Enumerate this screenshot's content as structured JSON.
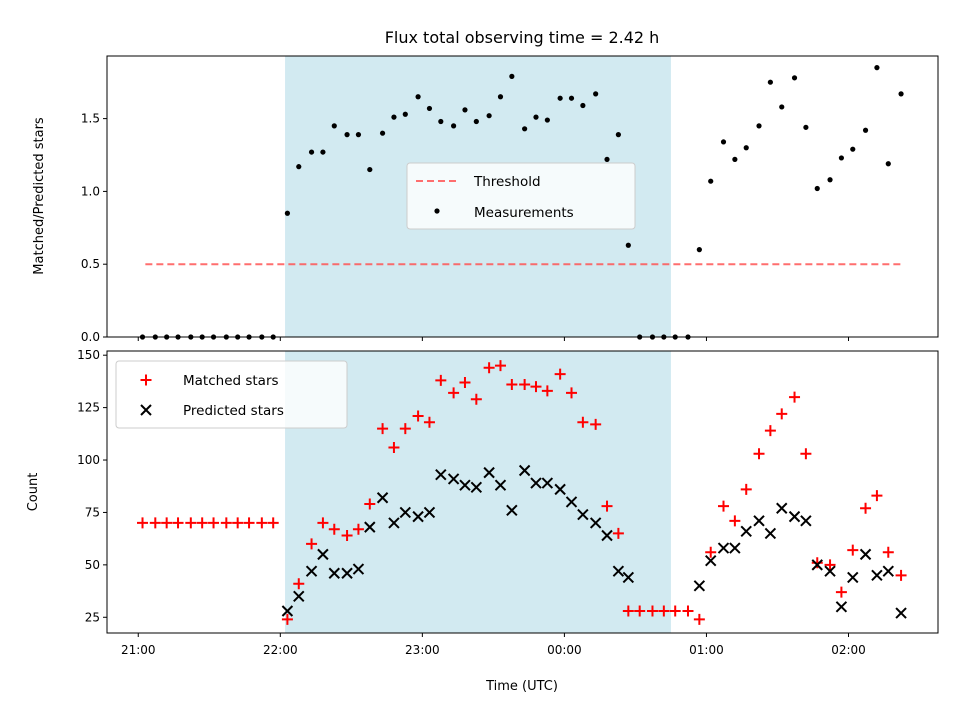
{
  "title": "Flux total observing time = 2.42 h",
  "colors": {
    "shade": "#add8e6",
    "threshold": "#ff5555",
    "matched": "#ff0000",
    "predicted": "#000000",
    "measurement": "#000000"
  },
  "chart_data": [
    {
      "type": "scatter",
      "name": "ratio-panel",
      "ylabel": "Matched/Predicted stars",
      "ylim": [
        0,
        1.93
      ],
      "yticks": [
        "0.0",
        "0.5",
        "1.0",
        "1.5"
      ],
      "ytick_values": [
        0,
        0.5,
        1.0,
        1.5
      ],
      "xlim": [
        20.78,
        26.63
      ],
      "shaded_interval": [
        "22:02",
        "00:45"
      ],
      "threshold": 0.5,
      "threshold_x": [
        21.05,
        26.38
      ],
      "legend": {
        "placement": "center",
        "labels": [
          "Threshold",
          "Measurements"
        ]
      },
      "series": [
        {
          "name": "Measurements",
          "points": [
            [
              21.03,
              0
            ],
            [
              21.12,
              0
            ],
            [
              21.2,
              0
            ],
            [
              21.28,
              0
            ],
            [
              21.37,
              0
            ],
            [
              21.45,
              0
            ],
            [
              21.53,
              0
            ],
            [
              21.62,
              0
            ],
            [
              21.7,
              0
            ],
            [
              21.78,
              0
            ],
            [
              21.87,
              0
            ],
            [
              21.95,
              0
            ],
            [
              22.05,
              0.85
            ],
            [
              22.13,
              1.17
            ],
            [
              22.22,
              1.27
            ],
            [
              22.3,
              1.27
            ],
            [
              22.38,
              1.45
            ],
            [
              22.47,
              1.39
            ],
            [
              22.55,
              1.39
            ],
            [
              22.63,
              1.15
            ],
            [
              22.72,
              1.4
            ],
            [
              22.8,
              1.51
            ],
            [
              22.88,
              1.53
            ],
            [
              22.97,
              1.65
            ],
            [
              23.05,
              1.57
            ],
            [
              23.13,
              1.48
            ],
            [
              23.22,
              1.45
            ],
            [
              23.3,
              1.56
            ],
            [
              23.38,
              1.48
            ],
            [
              23.47,
              1.52
            ],
            [
              23.55,
              1.65
            ],
            [
              23.63,
              1.79
            ],
            [
              23.72,
              1.43
            ],
            [
              23.8,
              1.51
            ],
            [
              23.88,
              1.49
            ],
            [
              23.97,
              1.64
            ],
            [
              24.05,
              1.64
            ],
            [
              24.13,
              1.59
            ],
            [
              24.22,
              1.67
            ],
            [
              24.3,
              1.22
            ],
            [
              24.38,
              1.39
            ],
            [
              24.45,
              0.63
            ],
            [
              24.53,
              0
            ],
            [
              24.62,
              0
            ],
            [
              24.7,
              0
            ],
            [
              24.78,
              0
            ],
            [
              24.87,
              0
            ],
            [
              24.95,
              0.6
            ],
            [
              25.03,
              1.07
            ],
            [
              25.12,
              1.34
            ],
            [
              25.2,
              1.22
            ],
            [
              25.28,
              1.3
            ],
            [
              25.37,
              1.45
            ],
            [
              25.45,
              1.75
            ],
            [
              25.53,
              1.58
            ],
            [
              25.62,
              1.78
            ],
            [
              25.7,
              1.44
            ],
            [
              25.78,
              1.02
            ],
            [
              25.87,
              1.08
            ],
            [
              25.95,
              1.23
            ],
            [
              26.03,
              1.29
            ],
            [
              26.12,
              1.42
            ],
            [
              26.2,
              1.85
            ],
            [
              26.28,
              1.19
            ],
            [
              26.37,
              1.67
            ]
          ]
        }
      ]
    },
    {
      "type": "scatter",
      "name": "count-panel",
      "xlabel": "Time (UTC)",
      "ylabel": "Count",
      "ylim": [
        17.5,
        152
      ],
      "yticks": [
        "25",
        "50",
        "75",
        "100",
        "125",
        "150"
      ],
      "ytick_values": [
        25,
        50,
        75,
        100,
        125,
        150
      ],
      "xlim": [
        20.78,
        26.63
      ],
      "xticks": [
        "21:00",
        "22:00",
        "23:00",
        "00:00",
        "01:00",
        "02:00"
      ],
      "xtick_values": [
        21,
        22,
        23,
        24,
        25,
        26
      ],
      "shaded_interval": [
        "22:02",
        "00:45"
      ],
      "legend": {
        "placement": "upper left",
        "labels": [
          "Matched stars",
          "Predicted stars"
        ]
      },
      "series": [
        {
          "name": "Matched stars",
          "points": [
            [
              21.03,
              70
            ],
            [
              21.12,
              70
            ],
            [
              21.2,
              70
            ],
            [
              21.28,
              70
            ],
            [
              21.37,
              70
            ],
            [
              21.45,
              70
            ],
            [
              21.53,
              70
            ],
            [
              21.62,
              70
            ],
            [
              21.7,
              70
            ],
            [
              21.78,
              70
            ],
            [
              21.87,
              70
            ],
            [
              21.95,
              70
            ],
            [
              22.05,
              24
            ],
            [
              22.13,
              41
            ],
            [
              22.22,
              60
            ],
            [
              22.3,
              70
            ],
            [
              22.38,
              67
            ],
            [
              22.47,
              64
            ],
            [
              22.55,
              67
            ],
            [
              22.63,
              79
            ],
            [
              22.72,
              115
            ],
            [
              22.8,
              106
            ],
            [
              22.88,
              115
            ],
            [
              22.97,
              121
            ],
            [
              23.05,
              118
            ],
            [
              23.13,
              138
            ],
            [
              23.22,
              132
            ],
            [
              23.3,
              137
            ],
            [
              23.38,
              129
            ],
            [
              23.47,
              144
            ],
            [
              23.55,
              145
            ],
            [
              23.63,
              136
            ],
            [
              23.72,
              136
            ],
            [
              23.8,
              135
            ],
            [
              23.88,
              133
            ],
            [
              23.97,
              141
            ],
            [
              24.05,
              132
            ],
            [
              24.13,
              118
            ],
            [
              24.22,
              117
            ],
            [
              24.3,
              78
            ],
            [
              24.38,
              65
            ],
            [
              24.45,
              28
            ],
            [
              24.53,
              28
            ],
            [
              24.62,
              28
            ],
            [
              24.7,
              28
            ],
            [
              24.78,
              28
            ],
            [
              24.87,
              28
            ],
            [
              24.95,
              24
            ],
            [
              25.03,
              56
            ],
            [
              25.12,
              78
            ],
            [
              25.2,
              71
            ],
            [
              25.28,
              86
            ],
            [
              25.37,
              103
            ],
            [
              25.45,
              114
            ],
            [
              25.53,
              122
            ],
            [
              25.62,
              130
            ],
            [
              25.7,
              103
            ],
            [
              25.78,
              51
            ],
            [
              25.87,
              50
            ],
            [
              25.95,
              37
            ],
            [
              26.03,
              57
            ],
            [
              26.12,
              77
            ],
            [
              26.2,
              83
            ],
            [
              26.28,
              56
            ],
            [
              26.37,
              45
            ]
          ]
        },
        {
          "name": "Predicted stars",
          "points": [
            [
              22.05,
              28
            ],
            [
              22.13,
              35
            ],
            [
              22.22,
              47
            ],
            [
              22.3,
              55
            ],
            [
              22.38,
              46
            ],
            [
              22.47,
              46
            ],
            [
              22.55,
              48
            ],
            [
              22.63,
              68
            ],
            [
              22.72,
              82
            ],
            [
              22.8,
              70
            ],
            [
              22.88,
              75
            ],
            [
              22.97,
              73
            ],
            [
              23.05,
              75
            ],
            [
              23.13,
              93
            ],
            [
              23.22,
              91
            ],
            [
              23.3,
              88
            ],
            [
              23.38,
              87
            ],
            [
              23.47,
              94
            ],
            [
              23.55,
              88
            ],
            [
              23.63,
              76
            ],
            [
              23.72,
              95
            ],
            [
              23.8,
              89
            ],
            [
              23.88,
              89
            ],
            [
              23.97,
              86
            ],
            [
              24.05,
              80
            ],
            [
              24.13,
              74
            ],
            [
              24.22,
              70
            ],
            [
              24.3,
              64
            ],
            [
              24.38,
              47
            ],
            [
              24.45,
              44
            ],
            [
              24.95,
              40
            ],
            [
              25.03,
              52
            ],
            [
              25.12,
              58
            ],
            [
              25.2,
              58
            ],
            [
              25.28,
              66
            ],
            [
              25.37,
              71
            ],
            [
              25.45,
              65
            ],
            [
              25.53,
              77
            ],
            [
              25.62,
              73
            ],
            [
              25.7,
              71
            ],
            [
              25.78,
              50
            ],
            [
              25.87,
              47
            ],
            [
              25.95,
              30
            ],
            [
              26.03,
              44
            ],
            [
              26.12,
              55
            ],
            [
              26.2,
              45
            ],
            [
              26.28,
              47
            ],
            [
              26.37,
              27
            ]
          ]
        }
      ]
    }
  ]
}
